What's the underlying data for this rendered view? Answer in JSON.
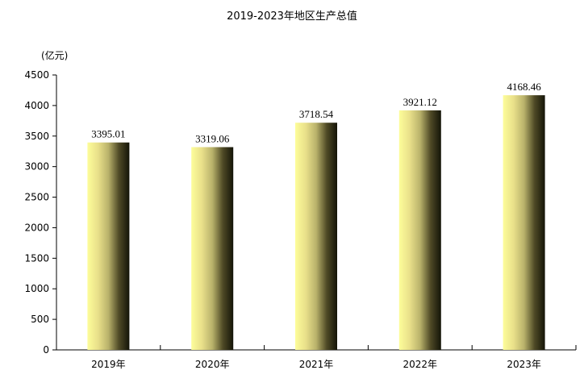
{
  "chart_data": {
    "type": "bar",
    "title": "2019-2023年地区生产总值",
    "ylabel": "(亿元)",
    "xlabel": "",
    "categories": [
      "2019年",
      "2020年",
      "2021年",
      "2022年",
      "2023年"
    ],
    "values": [
      3395.01,
      3319.06,
      3718.54,
      3921.12,
      4168.46
    ],
    "value_labels": [
      "3395.01",
      "3319.06",
      "3718.54",
      "3921.12",
      "4168.46"
    ],
    "ylim": [
      0,
      4500
    ],
    "yticks": [
      0,
      500,
      1000,
      1500,
      2000,
      2500,
      3000,
      3500,
      4000,
      4500
    ],
    "ytick_labels": [
      "0",
      "500",
      "1000",
      "1500",
      "2000",
      "2500",
      "3000",
      "3500",
      "4000",
      "4500"
    ],
    "grid": false,
    "bar_gradient": [
      "#fdfd9a",
      "#e9e08a",
      "#b9b26b",
      "#4f4a26",
      "#141408"
    ]
  }
}
